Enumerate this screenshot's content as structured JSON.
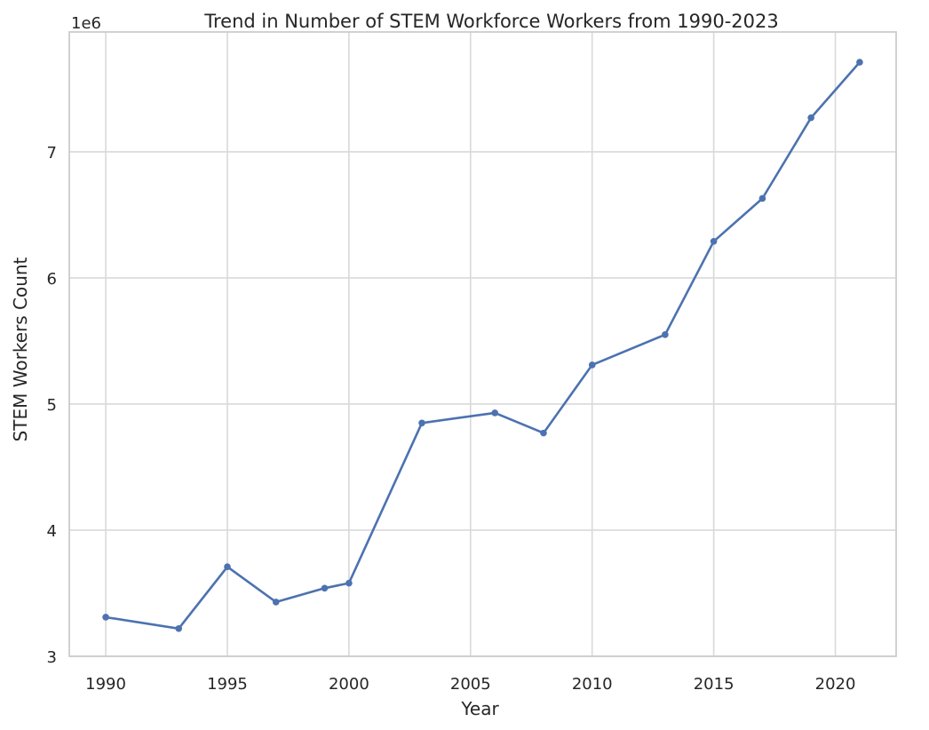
{
  "chart_data": {
    "type": "line",
    "title": "Trend in Number of STEM Workforce Workers from 1990-2023",
    "xlabel": "Year",
    "ylabel": "STEM Workers Count",
    "y_offset_label": "1e6",
    "xlim": [
      1988.5,
      2022.5
    ],
    "ylim": [
      3000000,
      7950000
    ],
    "xticks": [
      1990,
      1995,
      2000,
      2005,
      2010,
      2015,
      2020
    ],
    "yticks": [
      3000000,
      4000000,
      5000000,
      6000000,
      7000000
    ],
    "ytick_labels": [
      "3",
      "4",
      "5",
      "6",
      "7"
    ],
    "grid": true,
    "series": [
      {
        "color": "#4c72b0",
        "x": [
          1990,
          1993,
          1995,
          1997,
          1999,
          2000,
          2003,
          2006,
          2008,
          2010,
          2013,
          2015,
          2017,
          2019,
          2021
        ],
        "y": [
          3310000,
          3220000,
          3710000,
          3430000,
          3540000,
          3580000,
          4850000,
          4930000,
          4770000,
          5310000,
          5550000,
          6290000,
          6630000,
          7270000,
          7710000
        ]
      }
    ]
  }
}
